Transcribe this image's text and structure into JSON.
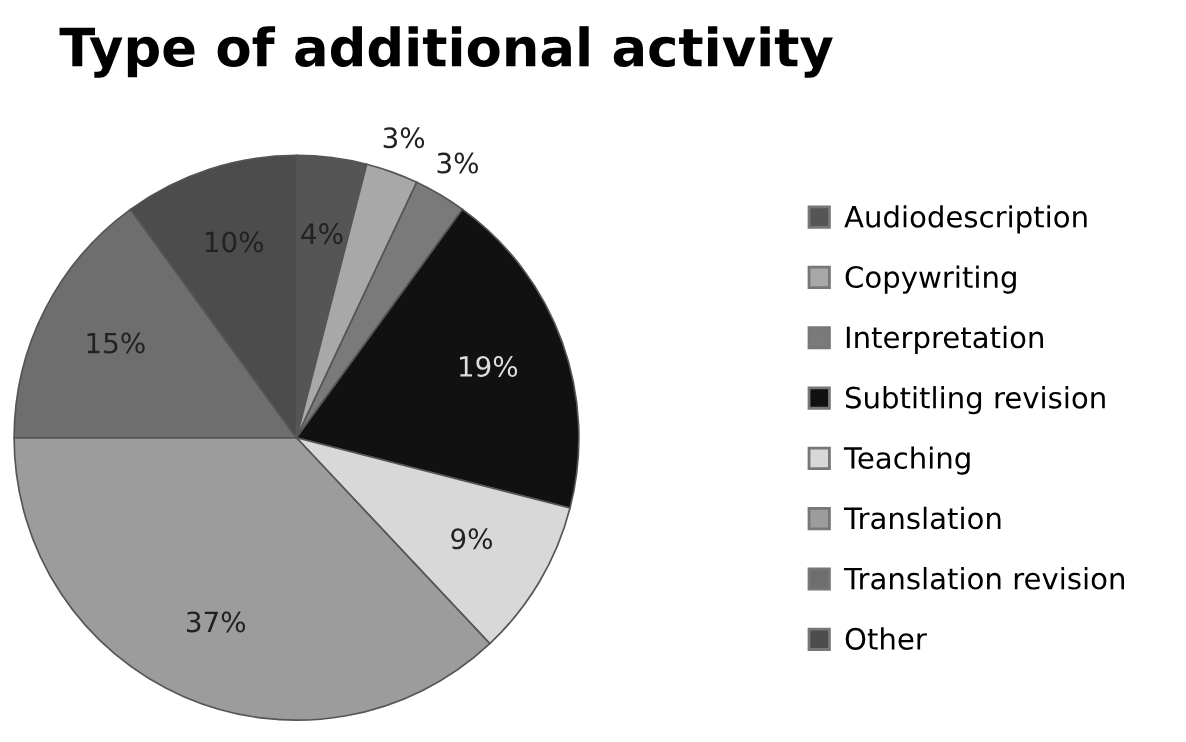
{
  "chart_data": {
    "type": "pie",
    "title": "Type of additional activity",
    "categories": [
      "Audiodescription",
      "Copywriting",
      "Interpretation",
      "Subtitling revision",
      "Teaching",
      "Translation",
      "Translation revision",
      "Other"
    ],
    "values": [
      4,
      3,
      3,
      19,
      9,
      37,
      15,
      10
    ],
    "value_labels": [
      "4%",
      "3%",
      "3%",
      "19%",
      "9%",
      "37%",
      "15%",
      "10%"
    ],
    "colors": [
      "#555555",
      "#a8a8a8",
      "#7a7a7a",
      "#111111",
      "#d8d8d8",
      "#9c9c9c",
      "#6e6e6e",
      "#4c4c4c"
    ],
    "legend": "right"
  }
}
